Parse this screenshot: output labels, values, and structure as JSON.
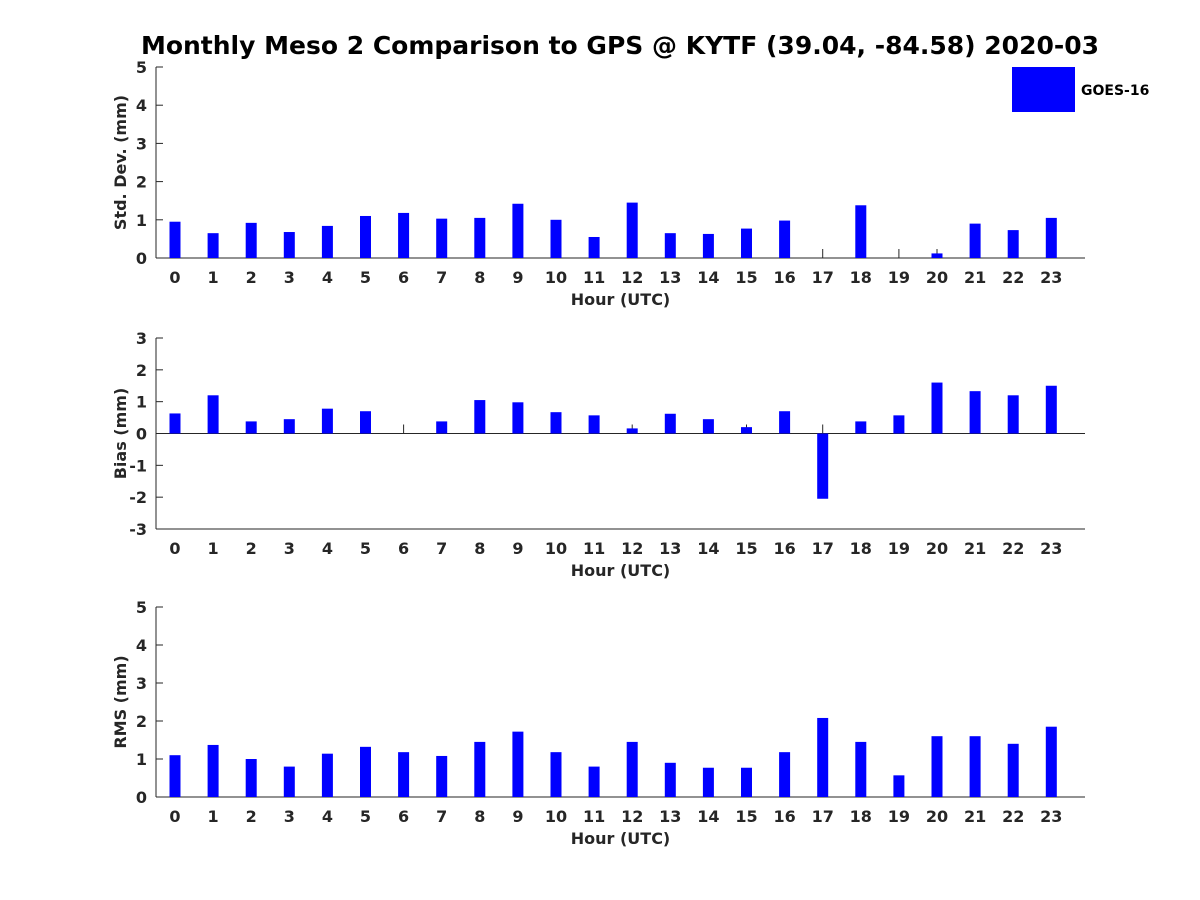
{
  "title": "Monthly Meso 2 Comparison to GPS @ KYTF (39.04, -84.58) 2020-03",
  "legend": {
    "label": "GOES-16",
    "color": "#0000ff",
    "placement": "top-right"
  },
  "colors": {
    "bar": "#0000ff",
    "axis": "#262626"
  },
  "chart_data": [
    {
      "type": "bar",
      "name": "std-dev",
      "xlabel": "Hour (UTC)",
      "ylabel": "Std. Dev. (mm)",
      "ylim": [
        0,
        5
      ],
      "yticks": [
        0,
        1,
        2,
        3,
        4,
        5
      ],
      "categories": [
        0,
        1,
        2,
        3,
        4,
        5,
        6,
        7,
        8,
        9,
        10,
        11,
        12,
        13,
        14,
        15,
        16,
        17,
        18,
        19,
        20,
        21,
        22,
        23
      ],
      "series": [
        {
          "name": "GOES-16",
          "values": [
            0.95,
            0.65,
            0.92,
            0.68,
            0.84,
            1.1,
            1.18,
            1.03,
            1.05,
            1.42,
            1.0,
            0.55,
            1.45,
            0.65,
            0.63,
            0.77,
            0.98,
            0.0,
            1.38,
            0.0,
            0.12,
            0.9,
            0.73,
            1.05
          ]
        }
      ]
    },
    {
      "type": "bar",
      "name": "bias",
      "xlabel": "Hour (UTC)",
      "ylabel": "Bias (mm)",
      "ylim": [
        -3,
        3
      ],
      "yticks": [
        -3,
        -2,
        -1,
        0,
        1,
        2,
        3
      ],
      "categories": [
        0,
        1,
        2,
        3,
        4,
        5,
        6,
        7,
        8,
        9,
        10,
        11,
        12,
        13,
        14,
        15,
        16,
        17,
        18,
        19,
        20,
        21,
        22,
        23
      ],
      "series": [
        {
          "name": "GOES-16",
          "values": [
            0.63,
            1.2,
            0.38,
            0.45,
            0.78,
            0.7,
            0.0,
            0.38,
            1.05,
            0.98,
            0.67,
            0.57,
            0.16,
            0.62,
            0.45,
            0.2,
            0.7,
            -2.05,
            0.38,
            0.57,
            1.6,
            1.33,
            1.2,
            1.5
          ]
        }
      ]
    },
    {
      "type": "bar",
      "name": "rms",
      "xlabel": "Hour (UTC)",
      "ylabel": "RMS (mm)",
      "ylim": [
        0,
        5
      ],
      "yticks": [
        0,
        1,
        2,
        3,
        4,
        5
      ],
      "categories": [
        0,
        1,
        2,
        3,
        4,
        5,
        6,
        7,
        8,
        9,
        10,
        11,
        12,
        13,
        14,
        15,
        16,
        17,
        18,
        19,
        20,
        21,
        22,
        23
      ],
      "series": [
        {
          "name": "GOES-16",
          "values": [
            1.1,
            1.37,
            1.0,
            0.8,
            1.14,
            1.32,
            1.18,
            1.08,
            1.45,
            1.72,
            1.18,
            0.8,
            1.45,
            0.9,
            0.77,
            0.77,
            1.18,
            2.08,
            1.45,
            0.57,
            1.6,
            1.6,
            1.4,
            1.85
          ]
        }
      ]
    }
  ]
}
